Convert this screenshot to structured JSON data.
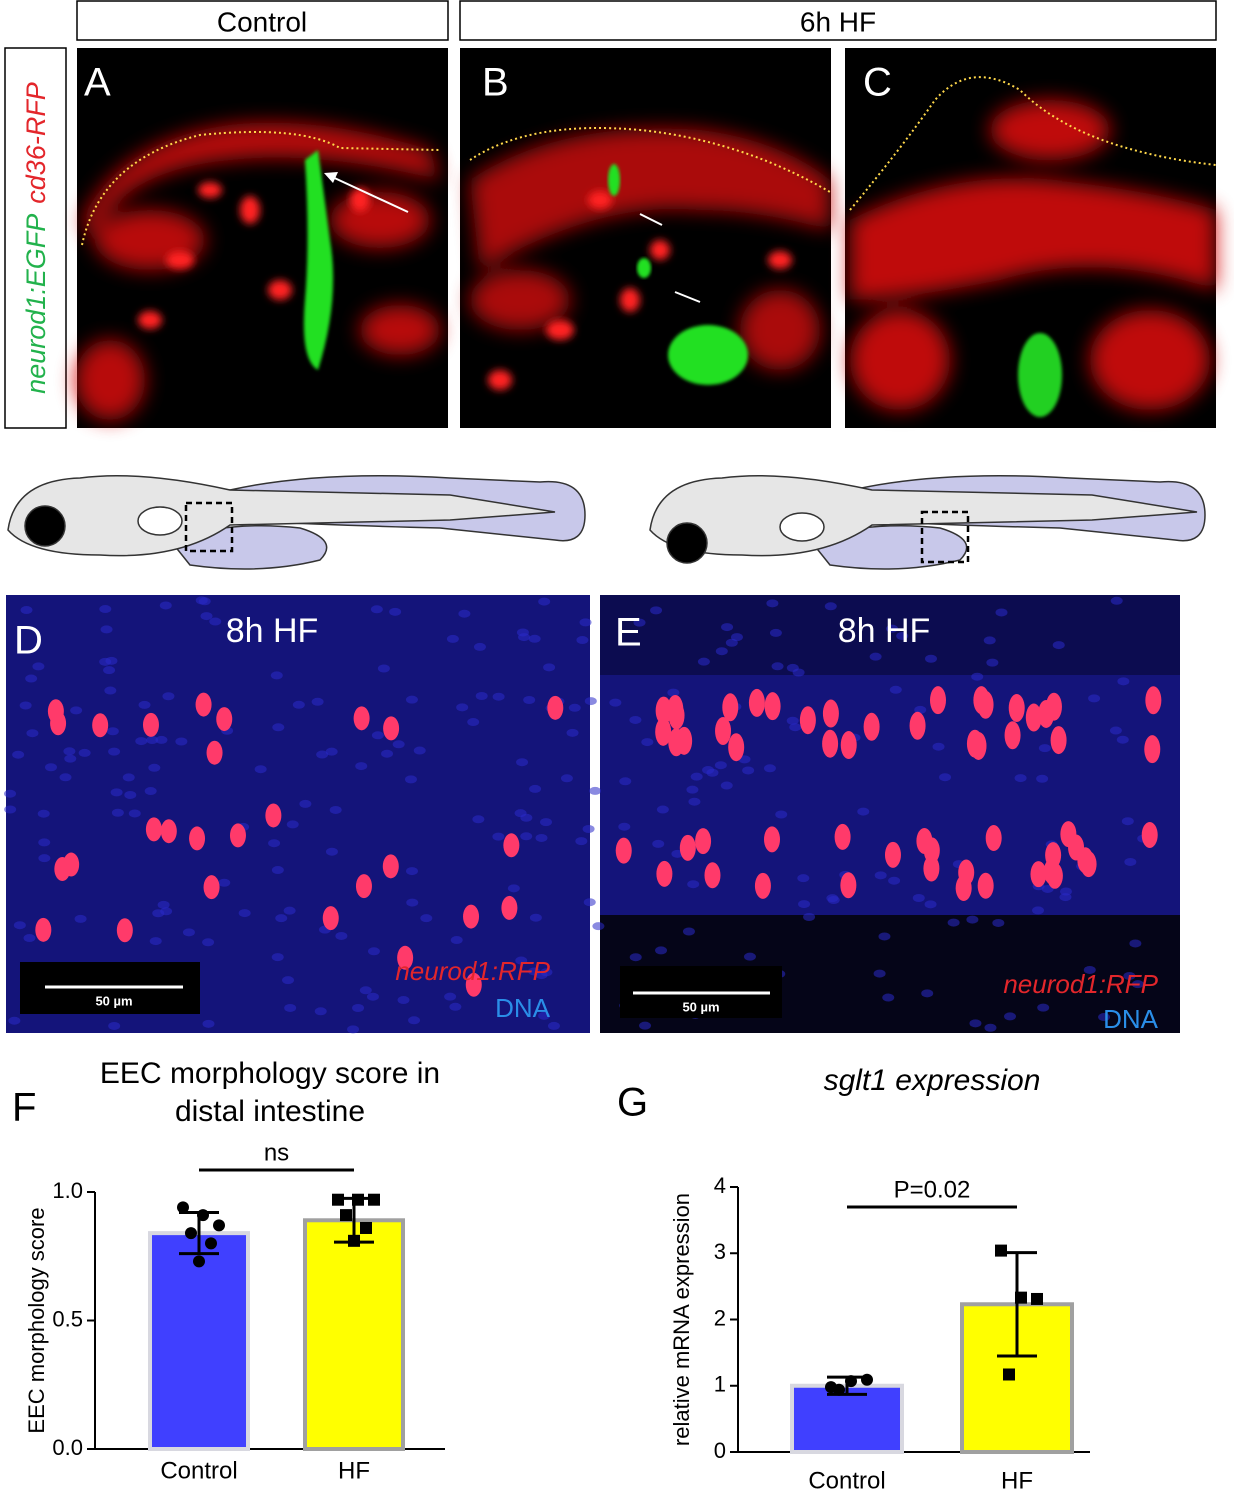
{
  "figure": {
    "column_headers": [
      "Control",
      "6h HF"
    ],
    "side_label": [
      "neurod1:EGFP",
      "cd36-RFP"
    ],
    "panels": [
      {
        "letter": "A"
      },
      {
        "letter": "B"
      },
      {
        "letter": "C"
      },
      {
        "letter": "D",
        "title": "8h HF",
        "scale_bar": "50 µm",
        "stain": [
          "neurod1:RFP",
          "DNA"
        ]
      },
      {
        "letter": "E",
        "title": "8h HF",
        "scale_bar": "50 µm",
        "stain": [
          "neurod1:RFP",
          "DNA"
        ]
      }
    ]
  },
  "chart_data": [
    {
      "type": "bar",
      "letter": "F",
      "title": [
        "EEC morphology score in",
        "distal intestine"
      ],
      "ylabel": "EEC morphology score",
      "categories": [
        "Control",
        "HF"
      ],
      "values": [
        0.84,
        0.89
      ],
      "errors": [
        0.08,
        0.085
      ],
      "points": [
        [
          0.94,
          0.91,
          0.87,
          0.84,
          0.8,
          0.73
        ],
        [
          0.97,
          0.97,
          0.97,
          0.91,
          0.86,
          0.81
        ]
      ],
      "markers": [
        "circle",
        "square"
      ],
      "colors": [
        "#4040ff",
        "#ffff00"
      ],
      "ylim": [
        0,
        1
      ],
      "yticks": [
        {
          "value": 0,
          "label": "0.0"
        },
        {
          "value": 0.5,
          "label": "0.5"
        },
        {
          "value": 1,
          "label": "1.0"
        }
      ],
      "annotation": "ns"
    },
    {
      "type": "bar",
      "letter": "G",
      "title": [
        "sglt1 expression"
      ],
      "ylabel": "relative mRNA expression",
      "categories": [
        "Control",
        "HF"
      ],
      "values": [
        1.0,
        2.23
      ],
      "errors": [
        0.13,
        0.78
      ],
      "points": [
        [
          0.98,
          1.07,
          1.09,
          0.94
        ],
        [
          3.04,
          2.33,
          2.31,
          1.17
        ]
      ],
      "markers": [
        "circle",
        "square"
      ],
      "colors": [
        "#4040ff",
        "#ffff00"
      ],
      "ylim": [
        0,
        4
      ],
      "yticks": [
        0,
        1,
        2,
        3,
        4
      ],
      "annotation": "P=0.02"
    }
  ]
}
